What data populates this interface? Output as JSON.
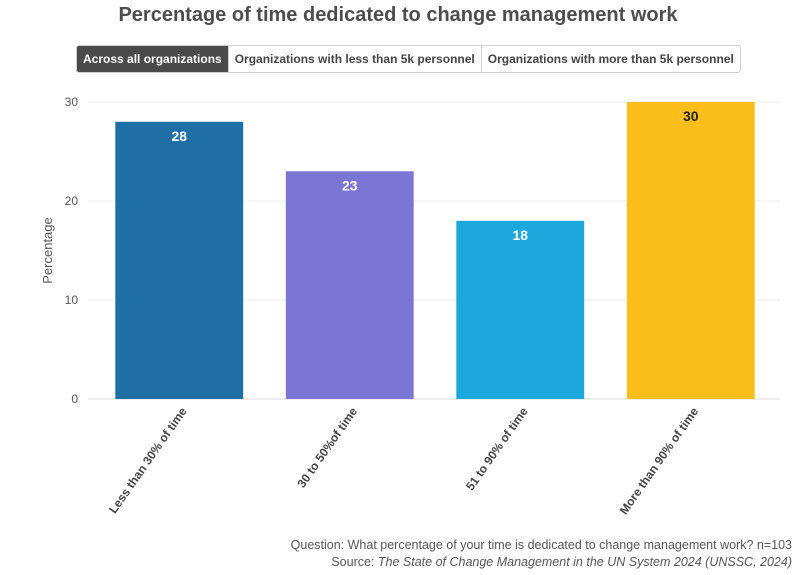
{
  "tabs": [
    {
      "label": "Across all organizations",
      "active": true
    },
    {
      "label": "Organizations with less than 5k personnel",
      "active": false
    },
    {
      "label": "Organizations with more than 5k personnel",
      "active": false
    }
  ],
  "footer": {
    "question": "Question: What percentage of your time is dedicated to change management work? n=103",
    "source_prefix": "Source: ",
    "source_title": "The State of Change Management in the UN System 2024 (UNSSC, 2024)"
  },
  "chart_data": {
    "type": "bar",
    "title": "Percentage of time dedicated to change management work",
    "xlabel": "",
    "ylabel": "Percentage",
    "categories": [
      "Less than 30% of time",
      "30 to 50%of time",
      "51 to 90% of time",
      "More than 90% of time"
    ],
    "values": [
      28,
      23,
      18,
      30
    ],
    "colors": [
      "#1f6ea6",
      "#7b76d4",
      "#1ca7dd",
      "#fcbe1a"
    ],
    "label_colors": [
      "#ffffff",
      "#ffffff",
      "#ffffff",
      "#222222"
    ],
    "ylim": [
      0,
      30
    ],
    "yticks": [
      0,
      10,
      20,
      30
    ],
    "grid": true
  }
}
